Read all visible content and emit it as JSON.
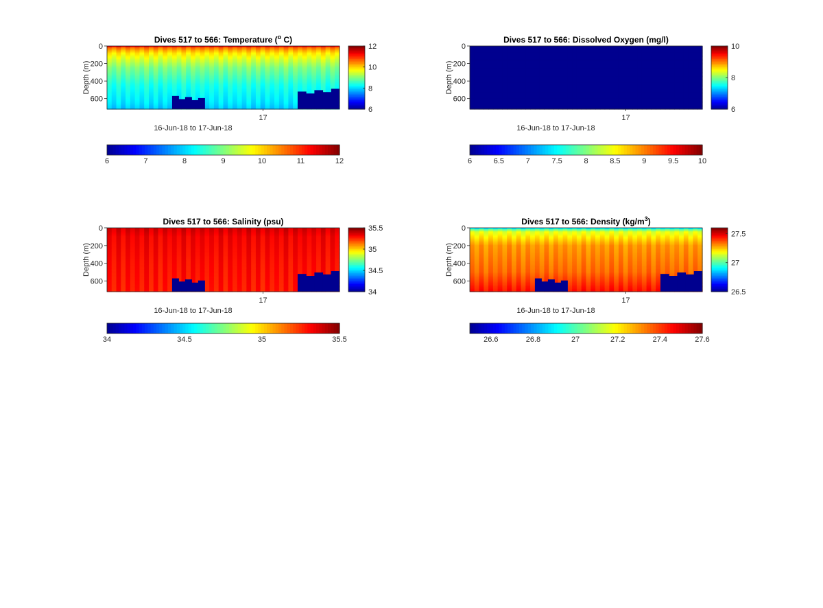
{
  "figure": {
    "date_range_label": "16-Jun-18 to 17-Jun-18",
    "x_tick_label": "17",
    "y_label": "Depth (m)"
  },
  "colormap": [
    "#00008f",
    "#0000ff",
    "#00ffff",
    "#ffff00",
    "#ff0000",
    "#800000"
  ],
  "chart_data": [
    {
      "type": "heatmap",
      "title": "Dives 517 to 566: Temperature (",
      "title_sup": "o",
      "title_tail": " C)",
      "xlabel": "16-Jun-18 to 17-Jun-18",
      "ylabel": "Depth (m)",
      "x_ticks": [
        "17"
      ],
      "y_ticks": [
        0,
        200,
        400,
        600
      ],
      "ylim": [
        0,
        720
      ],
      "clim": [
        6,
        12
      ],
      "colorbar_ticks": [
        6,
        8,
        10,
        12
      ],
      "horizontal_colorbar_ticks": [
        6,
        7,
        8,
        9,
        10,
        11,
        12
      ],
      "num_dives": 50,
      "depth_profile": [
        [
          0,
          11.8
        ],
        [
          20,
          10.6
        ],
        [
          80,
          9.9
        ],
        [
          250,
          9.0
        ],
        [
          450,
          8.4
        ],
        [
          650,
          8.1
        ],
        [
          720,
          7.9
        ]
      ],
      "bottom_gaps": [
        {
          "from_frac": 0.28,
          "to_frac": 0.42,
          "top_depth": 570
        },
        {
          "from_frac": 0.82,
          "to_frac": 1.0,
          "top_depth": 520
        }
      ]
    },
    {
      "type": "heatmap",
      "title": "Dives 517 to 566: Dissolved Oxygen (mg/l)",
      "title_sup": "",
      "title_tail": "",
      "xlabel": "16-Jun-18 to 17-Jun-18",
      "ylabel": "Depth (m)",
      "x_ticks": [
        "17"
      ],
      "y_ticks": [
        0,
        200,
        400,
        600
      ],
      "ylim": [
        0,
        720
      ],
      "clim": [
        6,
        10
      ],
      "colorbar_ticks": [
        6,
        8,
        10
      ],
      "horizontal_colorbar_ticks": [
        6,
        6.5,
        7,
        7.5,
        8,
        8.5,
        9,
        9.5,
        10
      ],
      "num_dives": 50,
      "depth_profile": [
        [
          0,
          6.0
        ],
        [
          720,
          6.0
        ]
      ],
      "bottom_gaps": []
    },
    {
      "type": "heatmap",
      "title": "Dives 517 to 566: Salinity (psu)",
      "title_sup": "",
      "title_tail": "",
      "xlabel": "16-Jun-18 to 17-Jun-18",
      "ylabel": "Depth (m)",
      "x_ticks": [
        "17"
      ],
      "y_ticks": [
        0,
        200,
        400,
        600
      ],
      "ylim": [
        0,
        720
      ],
      "clim": [
        34,
        35.5
      ],
      "colorbar_ticks": [
        34,
        34.5,
        35,
        35.5
      ],
      "horizontal_colorbar_ticks": [
        34,
        34.5,
        35,
        35.5
      ],
      "num_dives": 50,
      "depth_profile": [
        [
          0,
          35.38
        ],
        [
          100,
          35.33
        ],
        [
          400,
          35.3
        ],
        [
          720,
          35.28
        ]
      ],
      "bottom_gaps": [
        {
          "from_frac": 0.28,
          "to_frac": 0.42,
          "top_depth": 570
        },
        {
          "from_frac": 0.82,
          "to_frac": 1.0,
          "top_depth": 520
        }
      ]
    },
    {
      "type": "heatmap",
      "title": "Dives 517 to 566: Density (kg/m",
      "title_sup": "3",
      "title_tail": ")",
      "xlabel": "16-Jun-18 to 17-Jun-18",
      "ylabel": "Depth (m)",
      "x_ticks": [
        "17"
      ],
      "y_ticks": [
        0,
        200,
        400,
        600
      ],
      "ylim": [
        0,
        720
      ],
      "clim": [
        26.5,
        27.6
      ],
      "colorbar_ticks": [
        26.5,
        27,
        27.5
      ],
      "horizontal_colorbar_ticks": [
        26.6,
        26.8,
        27,
        27.2,
        27.4,
        27.6
      ],
      "num_dives": 50,
      "depth_profile": [
        [
          0,
          26.85
        ],
        [
          40,
          27.15
        ],
        [
          200,
          27.3
        ],
        [
          500,
          27.35
        ],
        [
          720,
          27.45
        ]
      ],
      "bottom_gaps": [
        {
          "from_frac": 0.28,
          "to_frac": 0.42,
          "top_depth": 570
        },
        {
          "from_frac": 0.82,
          "to_frac": 1.0,
          "top_depth": 520
        }
      ]
    }
  ]
}
